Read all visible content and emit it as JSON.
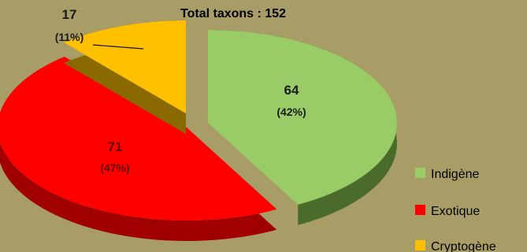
{
  "chart_data": {
    "type": "pie",
    "title": "Total taxons : 152",
    "categories": [
      "Indigène",
      "Exotique",
      "Cryptogène"
    ],
    "values": [
      64,
      71,
      17
    ],
    "percentages": [
      "(42%)",
      "(47%)",
      "(11%)"
    ],
    "value_labels": [
      "64",
      "71",
      "17"
    ],
    "colors": [
      "#99cc66",
      "#ff0000",
      "#ffc000"
    ],
    "side_colors": [
      "#4a6b2a",
      "#a10000",
      "#8a6a00"
    ],
    "legend_position": "bottom-right",
    "style": "3d exploded"
  }
}
